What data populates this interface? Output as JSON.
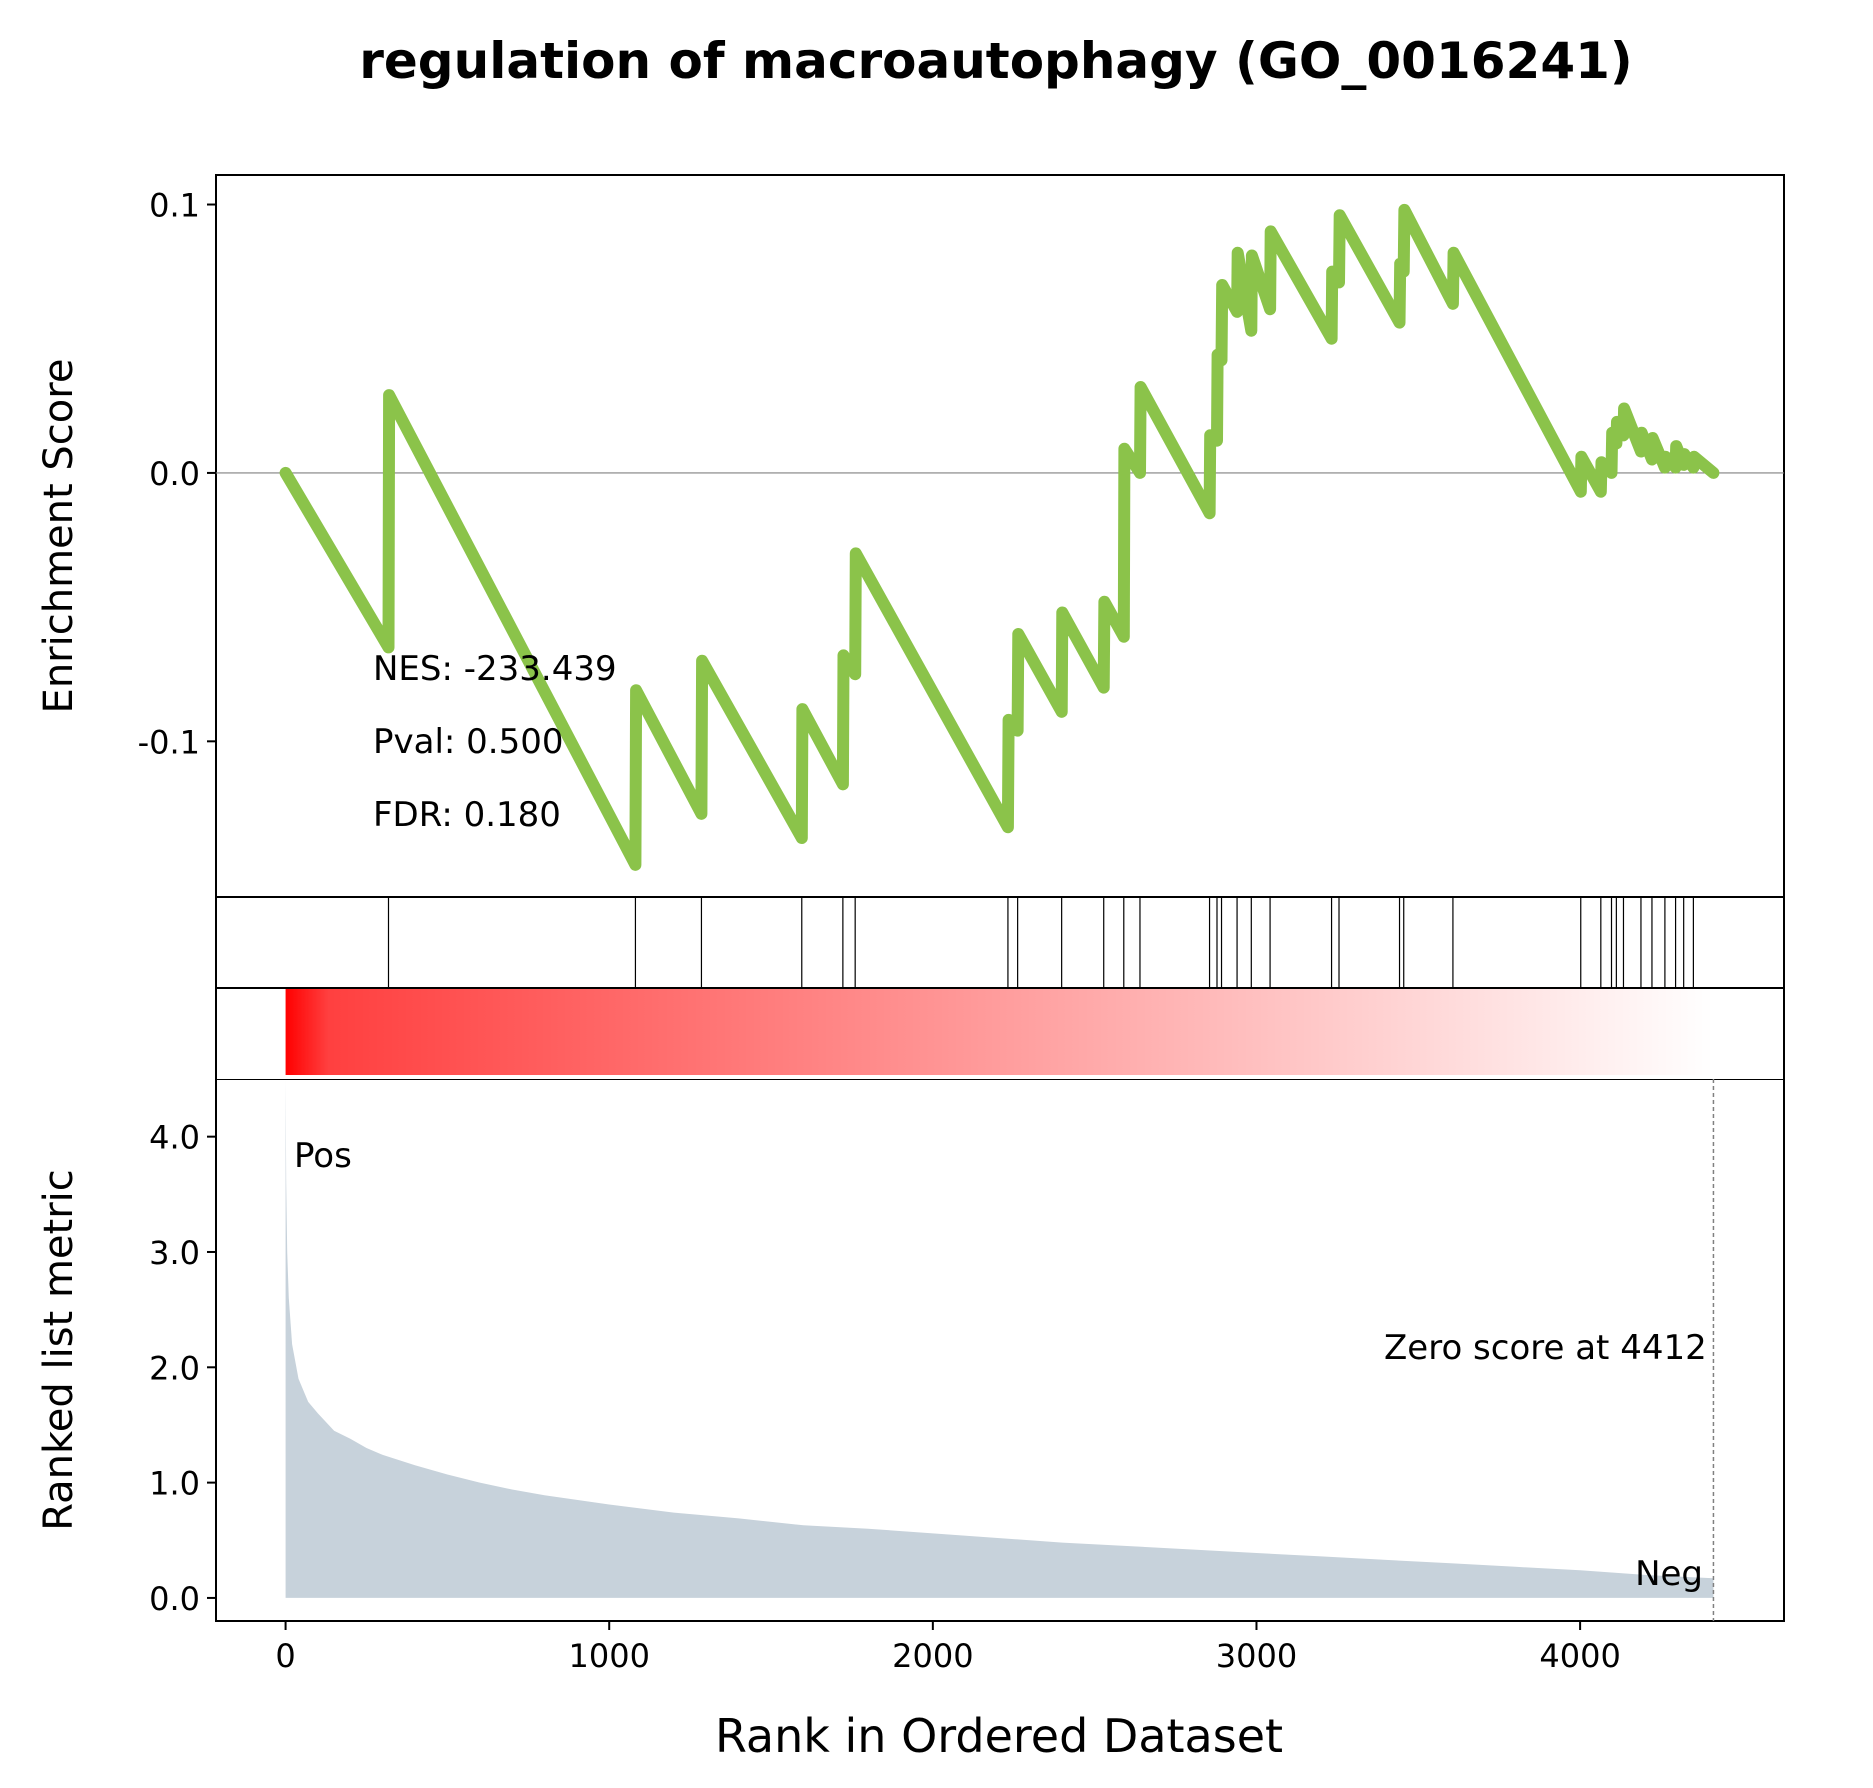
{
  "chart_data": {
    "type": "line",
    "title": "regulation of macroautophagy (GO_0016241)",
    "es_panel": {
      "ylabel": "Enrichment Score",
      "ylim": [
        -0.158,
        0.111
      ],
      "yticks": [
        0.1,
        0.0,
        -0.1
      ],
      "ytick_labels": [
        "0.1",
        "0.0",
        "-0.1"
      ],
      "line_color": "#8bc34a",
      "series": [
        [
          0,
          0.0
        ],
        [
          318,
          -0.065
        ],
        [
          320,
          0.029
        ],
        [
          1081,
          -0.146
        ],
        [
          1083,
          -0.081
        ],
        [
          1285,
          -0.127
        ],
        [
          1287,
          -0.07
        ],
        [
          1595,
          -0.136
        ],
        [
          1597,
          -0.088
        ],
        [
          1722,
          -0.116
        ],
        [
          1724,
          -0.068
        ],
        [
          1760,
          -0.075
        ],
        [
          1762,
          -0.03
        ],
        [
          2232,
          -0.132
        ],
        [
          2234,
          -0.092
        ],
        [
          2262,
          -0.096
        ],
        [
          2264,
          -0.06
        ],
        [
          2398,
          -0.089
        ],
        [
          2400,
          -0.052
        ],
        [
          2528,
          -0.08
        ],
        [
          2530,
          -0.048
        ],
        [
          2590,
          -0.061
        ],
        [
          2592,
          0.009
        ],
        [
          2640,
          0.0
        ],
        [
          2642,
          0.032
        ],
        [
          2855,
          -0.015
        ],
        [
          2857,
          0.014
        ],
        [
          2878,
          0.012
        ],
        [
          2880,
          0.044
        ],
        [
          2892,
          0.042
        ],
        [
          2894,
          0.07
        ],
        [
          2940,
          0.06
        ],
        [
          2942,
          0.082
        ],
        [
          2984,
          0.053
        ],
        [
          2986,
          0.081
        ],
        [
          3042,
          0.061
        ],
        [
          3044,
          0.09
        ],
        [
          3232,
          0.05
        ],
        [
          3234,
          0.075
        ],
        [
          3255,
          0.071
        ],
        [
          3257,
          0.096
        ],
        [
          3442,
          0.056
        ],
        [
          3444,
          0.078
        ],
        [
          3455,
          0.075
        ],
        [
          3457,
          0.098
        ],
        [
          3607,
          0.063
        ],
        [
          3609,
          0.082
        ],
        [
          4002,
          -0.007
        ],
        [
          4004,
          0.006
        ],
        [
          4064,
          -0.007
        ],
        [
          4066,
          0.004
        ],
        [
          4097,
          0.0
        ],
        [
          4099,
          0.015
        ],
        [
          4112,
          0.011
        ],
        [
          4114,
          0.019
        ],
        [
          4134,
          0.014
        ],
        [
          4136,
          0.024
        ],
        [
          4188,
          0.008
        ],
        [
          4190,
          0.015
        ],
        [
          4222,
          0.005
        ],
        [
          4224,
          0.013
        ],
        [
          4262,
          0.002
        ],
        [
          4264,
          0.006
        ],
        [
          4295,
          0.002
        ],
        [
          4297,
          0.01
        ],
        [
          4320,
          0.003
        ],
        [
          4322,
          0.007
        ],
        [
          4350,
          0.002
        ],
        [
          4352,
          0.006
        ],
        [
          4412,
          0.0
        ]
      ],
      "annotations": [
        "NES: -233.439",
        "Pval: 0.500",
        "FDR: 0.180"
      ]
    },
    "hits": [
      318,
      1081,
      1285,
      1595,
      1722,
      1760,
      2232,
      2262,
      2398,
      2528,
      2590,
      2640,
      2855,
      2878,
      2892,
      2940,
      2984,
      3042,
      3232,
      3255,
      3442,
      3455,
      3607,
      4002,
      4064,
      4097,
      4112,
      4134,
      4188,
      4222,
      4262,
      4295,
      4320,
      4350
    ],
    "gradient": {
      "from_color": "#ff0000",
      "to_color": "#ffffff"
    },
    "metric_panel": {
      "ylabel": "Ranked list metric",
      "ylim": [
        -0.2,
        4.5
      ],
      "yticks": [
        0.0,
        1.0,
        2.0,
        3.0,
        4.0
      ],
      "ytick_labels": [
        "0.0",
        "1.0",
        "2.0",
        "3.0",
        "4.0"
      ],
      "fill_color": "#c7d2db",
      "series": [
        [
          0,
          4.5
        ],
        [
          2,
          3.6
        ],
        [
          5,
          3.0
        ],
        [
          10,
          2.6
        ],
        [
          20,
          2.2
        ],
        [
          40,
          1.9
        ],
        [
          70,
          1.7
        ],
        [
          100,
          1.6
        ],
        [
          150,
          1.45
        ],
        [
          200,
          1.38
        ],
        [
          250,
          1.3
        ],
        [
          300,
          1.24
        ],
        [
          400,
          1.15
        ],
        [
          500,
          1.07
        ],
        [
          600,
          1.0
        ],
        [
          700,
          0.94
        ],
        [
          800,
          0.89
        ],
        [
          1000,
          0.81
        ],
        [
          1200,
          0.74
        ],
        [
          1400,
          0.69
        ],
        [
          1600,
          0.63
        ],
        [
          1800,
          0.6
        ],
        [
          2000,
          0.56
        ],
        [
          2200,
          0.52
        ],
        [
          2400,
          0.48
        ],
        [
          2600,
          0.45
        ],
        [
          2800,
          0.42
        ],
        [
          3000,
          0.39
        ],
        [
          3200,
          0.36
        ],
        [
          3400,
          0.33
        ],
        [
          3600,
          0.3
        ],
        [
          3800,
          0.27
        ],
        [
          4000,
          0.24
        ],
        [
          4200,
          0.2
        ],
        [
          4412,
          0.17
        ]
      ],
      "pos_label": "Pos",
      "pos_color": "#ff0000",
      "neg_label": "Neg",
      "neg_color": "#0000ff",
      "zero_score_label": "Zero score at 4412",
      "zero_score_rank": 4412
    },
    "xlabel": "Rank in Ordered Dataset",
    "xlim": [
      -215,
      4630
    ],
    "xticks": [
      0,
      1000,
      2000,
      3000,
      4000
    ],
    "xtick_labels": [
      "0",
      "1000",
      "2000",
      "3000",
      "4000"
    ]
  }
}
